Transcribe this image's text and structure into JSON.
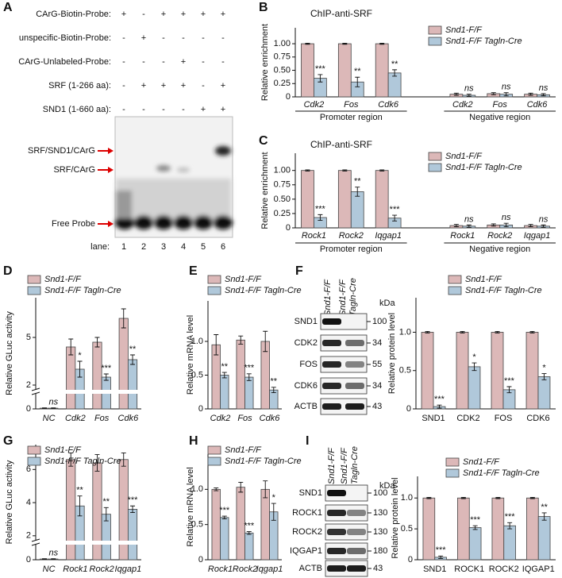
{
  "panel_labels": [
    "A",
    "B",
    "C",
    "D",
    "E",
    "F",
    "G",
    "H",
    "I"
  ],
  "emsa": {
    "rows": [
      {
        "label": "CArG-Biotin-Probe:",
        "signs": [
          "+",
          "-",
          "+",
          "+",
          "+",
          "+"
        ]
      },
      {
        "label": "unspecific-Biotin-Probe:",
        "signs": [
          "-",
          "+",
          "-",
          "-",
          "-",
          "-"
        ]
      },
      {
        "label": "CArG-Unlabeled-Probe:",
        "signs": [
          "-",
          "-",
          "-",
          "+",
          "-",
          "-"
        ]
      },
      {
        "label": "SRF (1-266 aa):",
        "signs": [
          "-",
          "+",
          "+",
          "+",
          "-",
          "+"
        ]
      },
      {
        "label": "SND1 (1-660 aa):",
        "signs": [
          "-",
          "-",
          "-",
          "-",
          "+",
          "+"
        ]
      }
    ],
    "bands": [
      "SRF/SND1/CArG",
      "SRF/CArG",
      "Free Probe"
    ],
    "lane_label": "lane:",
    "lanes": [
      1,
      2,
      3,
      4,
      5,
      6
    ]
  },
  "blots": [
    {
      "lane_lines": [
        [
          "Snd1-F/F"
        ],
        [
          "Snd1-F/F",
          "Tagln-Cre"
        ]
      ],
      "unit": "kDa",
      "rows": [
        {
          "label": "SND1",
          "kda": 100
        },
        {
          "label": "CDK2",
          "kda": 34
        },
        {
          "label": "FOS",
          "kda": 55
        },
        {
          "label": "CDK6",
          "kda": 34
        },
        {
          "label": "ACTB",
          "kda": 43
        }
      ]
    },
    {
      "lane_lines": [
        [
          "Snd1-F/F"
        ],
        [
          "Snd1-F/F",
          "Tagln-Cre"
        ]
      ],
      "unit": "kDa",
      "rows": [
        {
          "label": "SND1",
          "kda": 100
        },
        {
          "label": "ROCK1",
          "kda": 130
        },
        {
          "label": "ROCK2",
          "kda": 130
        },
        {
          "label": "IQGAP1",
          "kda": 180
        },
        {
          "label": "ACTB",
          "kda": 43
        }
      ]
    }
  ],
  "chart_data": [
    {
      "type": "bar",
      "title": "ChIP-anti-SRF",
      "ylabel": "Relative enrichment",
      "categories": [
        "Cdk2",
        "Fos",
        "Cdk6",
        "Cdk2",
        "Fos",
        "Cdk6"
      ],
      "group_labels": [
        "Promoter region",
        "Negative region"
      ],
      "series": [
        {
          "name": "Snd1-F/F",
          "color": "#dcb8b8",
          "values": [
            1,
            1,
            1,
            0.05,
            0.06,
            0.05
          ],
          "errors": [
            0.01,
            0.01,
            0.01,
            0.02,
            0.02,
            0.02
          ]
        },
        {
          "name": "Snd1-F/F Tagln-Cre",
          "color": "#b0c8da",
          "values": [
            0.35,
            0.28,
            0.45,
            0.03,
            0.05,
            0.04
          ],
          "errors": [
            0.07,
            0.09,
            0.06,
            0.02,
            0.03,
            0.02
          ]
        }
      ],
      "annotations": [
        "***",
        "**",
        "**",
        "ns",
        "ns",
        "ns"
      ],
      "ylim": [
        0,
        1.3
      ],
      "yticks": [
        0,
        0.25,
        {
          "value": 0.5,
          "label": "0.50"
        },
        0.75,
        {
          "value": 1,
          "label": "1.00"
        }
      ]
    },
    {
      "type": "bar",
      "title": "ChIP-anti-SRF",
      "ylabel": "Relative enrichment",
      "categories": [
        "Rock1",
        "Rock2",
        "Iqgap1",
        "Rock1",
        "Rock2",
        "Iqgap1"
      ],
      "group_labels": [
        "Promoter region",
        "Negative region"
      ],
      "series": [
        {
          "name": "Snd1-F/F",
          "color": "#dcb8b8",
          "values": [
            1,
            1,
            1,
            0.04,
            0.05,
            0.04
          ],
          "errors": [
            0.01,
            0.01,
            0.01,
            0.02,
            0.02,
            0.02
          ]
        },
        {
          "name": "Snd1-F/F Tagln-Cre",
          "color": "#b0c8da",
          "values": [
            0.18,
            0.63,
            0.17,
            0.03,
            0.05,
            0.03
          ],
          "errors": [
            0.05,
            0.08,
            0.05,
            0.02,
            0.03,
            0.02
          ]
        }
      ],
      "annotations": [
        "***",
        "**",
        "***",
        "ns",
        "ns",
        "ns"
      ],
      "ylim": [
        0,
        1.3
      ],
      "yticks": [
        0,
        0.25,
        {
          "value": 0.5,
          "label": "0.50"
        },
        0.75,
        {
          "value": 1,
          "label": "1.00"
        }
      ]
    },
    {
      "type": "bar",
      "ylabel": "Relative GLuc activity",
      "categories": [
        "NC",
        "Cdk2",
        "Fos",
        "Cdk6"
      ],
      "series": [
        {
          "name": "Snd1-F/F",
          "color": "#dcb8b8",
          "values": [
            0.05,
            4.4,
            4.7,
            6.2
          ],
          "errors": [
            0.02,
            0.5,
            0.3,
            0.6
          ]
        },
        {
          "name": "Snd1-F/F Tagln-Cre",
          "color": "#b0c8da",
          "values": [
            0.05,
            3.0,
            2.5,
            3.6
          ],
          "errors": [
            0.02,
            0.5,
            0.2,
            0.3
          ]
        }
      ],
      "annotations": [
        "ns",
        "*",
        "***",
        "**"
      ],
      "ylim": [
        0,
        7.5
      ],
      "ybreak": [
        1,
        1.8
      ],
      "yticks": [
        0,
        2,
        5
      ]
    },
    {
      "type": "bar",
      "ylabel": "Relative mRNA level",
      "categories": [
        "Cdk2",
        "Fos",
        "Cdk6"
      ],
      "series": [
        {
          "name": "Snd1-F/F",
          "color": "#dcb8b8",
          "values": [
            0.95,
            1.02,
            1.0
          ],
          "errors": [
            0.15,
            0.06,
            0.15
          ]
        },
        {
          "name": "Snd1-F/F Tagln-Cre",
          "color": "#b0c8da",
          "values": [
            0.5,
            0.47,
            0.28
          ],
          "errors": [
            0.04,
            0.05,
            0.04
          ]
        }
      ],
      "annotations": [
        "**",
        "***",
        "**"
      ],
      "ylim": [
        0,
        1.6
      ],
      "yticks": [
        0,
        0.5,
        {
          "value": 1,
          "label": "1.0"
        }
      ]
    },
    {
      "type": "bar",
      "ylabel": "Relative protein level",
      "categories": [
        "SND1",
        "CDK2",
        "FOS",
        "CDK6"
      ],
      "series": [
        {
          "name": "Snd1-F/F",
          "color": "#dcb8b8",
          "values": [
            1,
            1,
            1,
            1
          ],
          "errors": [
            0.01,
            0.01,
            0.01,
            0.01
          ]
        },
        {
          "name": "Snd1-F/F Tagln-Cre",
          "color": "#b0c8da",
          "values": [
            0.03,
            0.55,
            0.25,
            0.42
          ],
          "errors": [
            0.02,
            0.05,
            0.04,
            0.04
          ]
        }
      ],
      "annotations": [
        "***",
        "*",
        "***",
        "*"
      ],
      "ylim": [
        0,
        1.45
      ],
      "yticks": [
        0,
        0.5,
        {
          "value": 1,
          "label": "1.0"
        }
      ]
    },
    {
      "type": "bar",
      "ylabel": "Relative GLuc activity",
      "categories": [
        "NC",
        "Rock1",
        "Rock2",
        "Iqgap1"
      ],
      "series": [
        {
          "name": "Snd1-F/F",
          "color": "#dcb8b8",
          "values": [
            0.05,
            6.6,
            6.4,
            6.6
          ],
          "errors": [
            0.02,
            0.4,
            0.5,
            0.4
          ]
        },
        {
          "name": "Snd1-F/F Tagln-Cre",
          "color": "#b0c8da",
          "values": [
            0.05,
            3.8,
            3.3,
            3.6
          ],
          "errors": [
            0.02,
            0.6,
            0.4,
            0.2
          ]
        }
      ],
      "annotations": [
        "ns",
        "**",
        "**",
        "***"
      ],
      "ylim": [
        0,
        7.5
      ],
      "ybreak": [
        1,
        1.8
      ],
      "yticks": [
        0,
        2,
        4,
        6
      ]
    },
    {
      "type": "bar",
      "ylabel": "Relative mRNA level",
      "categories": [
        "Rock1",
        "Rock2",
        "Iqgap1"
      ],
      "series": [
        {
          "name": "Snd1-F/F",
          "color": "#dcb8b8",
          "values": [
            1.0,
            1.03,
            1.0
          ],
          "errors": [
            0.02,
            0.07,
            0.12
          ]
        },
        {
          "name": "Snd1-F/F Tagln-Cre",
          "color": "#b0c8da",
          "values": [
            0.6,
            0.38,
            0.68
          ],
          "errors": [
            0.02,
            0.02,
            0.12
          ]
        }
      ],
      "annotations": [
        "***",
        "***",
        "*"
      ],
      "ylim": [
        0,
        1.5
      ],
      "yticks": [
        0,
        0.5,
        {
          "value": 1,
          "label": "1.0"
        }
      ]
    },
    {
      "type": "bar",
      "ylabel": "Relative protein level",
      "categories": [
        "SND1",
        "ROCK1",
        "ROCK2",
        "IQGAP1"
      ],
      "series": [
        {
          "name": "Snd1-F/F",
          "color": "#dcb8b8",
          "values": [
            1,
            1,
            1,
            1
          ],
          "errors": [
            0.01,
            0.01,
            0.01,
            0.01
          ]
        },
        {
          "name": "Snd1-F/F Tagln-Cre",
          "color": "#b0c8da",
          "values": [
            0.04,
            0.52,
            0.55,
            0.7
          ],
          "errors": [
            0.02,
            0.03,
            0.05,
            0.06
          ]
        }
      ],
      "annotations": [
        "***",
        "***",
        "***",
        "**"
      ],
      "ylim": [
        0,
        1.35
      ],
      "yticks": [
        0,
        0.5,
        {
          "value": 1,
          "label": "1.0"
        }
      ]
    }
  ]
}
